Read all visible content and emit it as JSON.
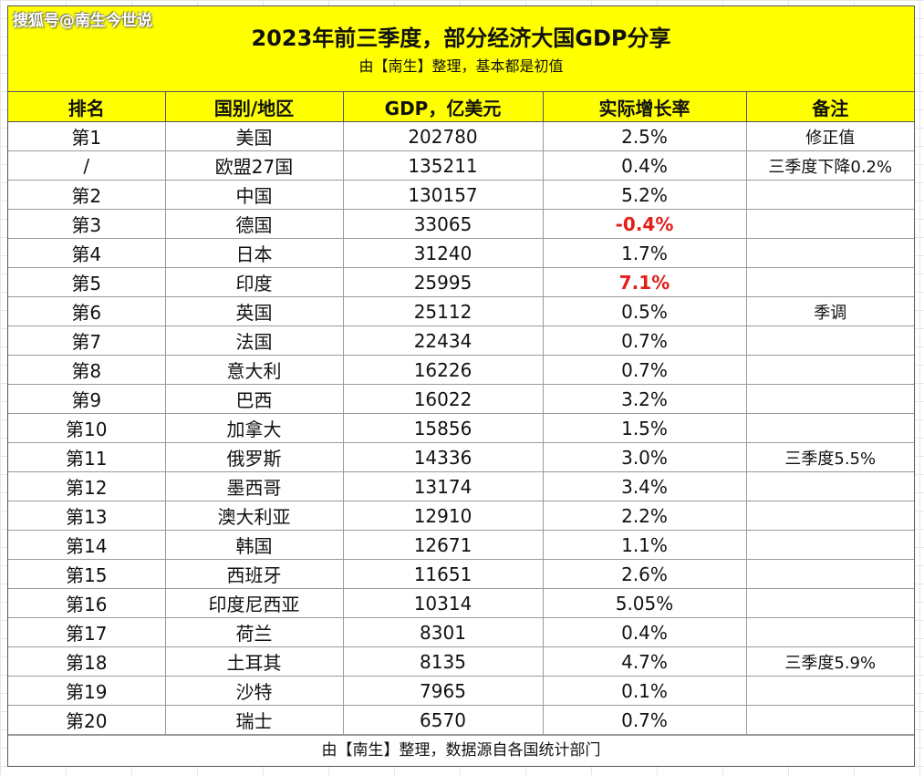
{
  "watermark": "搜狐号@南生今世说",
  "title": "2023年前三季度，部分经济大国GDP分享",
  "subtitle": "由【南生】整理，基本都是初值",
  "headers": [
    "排名",
    "国别/地区",
    "GDP，亿美元",
    "实际增长率",
    "备注"
  ],
  "rows": [
    {
      "rank": "第1",
      "region": "美国",
      "gdp": "202780",
      "growth": "2.5%",
      "note": "修正值"
    },
    {
      "rank": "/",
      "region": "欧盟27国",
      "gdp": "135211",
      "growth": "0.4%",
      "note": "三季度下降0.2%"
    },
    {
      "rank": "第2",
      "region": "中国",
      "gdp": "130157",
      "growth": "5.2%",
      "note": ""
    },
    {
      "rank": "第3",
      "region": "德国",
      "gdp": "33065",
      "growth": "-0.4%",
      "note": "",
      "highlight": true
    },
    {
      "rank": "第4",
      "region": "日本",
      "gdp": "31240",
      "growth": "1.7%",
      "note": ""
    },
    {
      "rank": "第5",
      "region": "印度",
      "gdp": "25995",
      "growth": "7.1%",
      "note": "",
      "highlight": true
    },
    {
      "rank": "第6",
      "region": "英国",
      "gdp": "25112",
      "growth": "0.5%",
      "note": "季调"
    },
    {
      "rank": "第7",
      "region": "法国",
      "gdp": "22434",
      "growth": "0.7%",
      "note": ""
    },
    {
      "rank": "第8",
      "region": "意大利",
      "gdp": "16226",
      "growth": "0.7%",
      "note": ""
    },
    {
      "rank": "第9",
      "region": "巴西",
      "gdp": "16022",
      "growth": "3.2%",
      "note": ""
    },
    {
      "rank": "第10",
      "region": "加拿大",
      "gdp": "15856",
      "growth": "1.5%",
      "note": ""
    },
    {
      "rank": "第11",
      "region": "俄罗斯",
      "gdp": "14336",
      "growth": "3.0%",
      "note": "三季度5.5%"
    },
    {
      "rank": "第12",
      "region": "墨西哥",
      "gdp": "13174",
      "growth": "3.4%",
      "note": ""
    },
    {
      "rank": "第13",
      "region": "澳大利亚",
      "gdp": "12910",
      "growth": "2.2%",
      "note": ""
    },
    {
      "rank": "第14",
      "region": "韩国",
      "gdp": "12671",
      "growth": "1.1%",
      "note": ""
    },
    {
      "rank": "第15",
      "region": "西班牙",
      "gdp": "11651",
      "growth": "2.6%",
      "note": ""
    },
    {
      "rank": "第16",
      "region": "印度尼西亚",
      "gdp": "10314",
      "growth": "5.05%",
      "note": ""
    },
    {
      "rank": "第17",
      "region": "荷兰",
      "gdp": "8301",
      "growth": "0.4%",
      "note": ""
    },
    {
      "rank": "第18",
      "region": "土耳其",
      "gdp": "8135",
      "growth": "4.7%",
      "note": "三季度5.9%"
    },
    {
      "rank": "第19",
      "region": "沙特",
      "gdp": "7965",
      "growth": "0.1%",
      "note": ""
    },
    {
      "rank": "第20",
      "region": "瑞士",
      "gdp": "6570",
      "growth": "0.7%",
      "note": ""
    }
  ],
  "footer": "由【南生】整理，数据源自各国统计部门",
  "colors": {
    "header_bg": "#ffff00",
    "highlight_text": "#e0201b"
  }
}
